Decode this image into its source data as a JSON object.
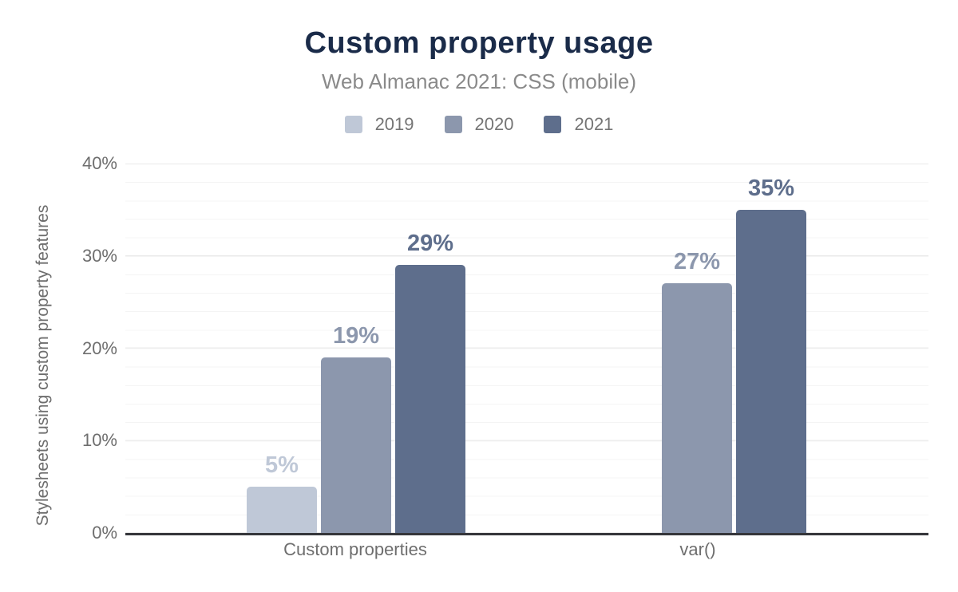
{
  "chart_data": {
    "type": "bar",
    "title": "Custom property usage",
    "subtitle": "Web Almanac 2021: CSS (mobile)",
    "ylabel": "Stylesheets using custom property features",
    "xlabel": "",
    "categories": [
      "Custom properties",
      "var()"
    ],
    "series": [
      {
        "name": "2019",
        "color": "#bfc8d7",
        "values": [
          5,
          null
        ]
      },
      {
        "name": "2020",
        "color": "#8c97ad",
        "values": [
          19,
          27
        ]
      },
      {
        "name": "2021",
        "color": "#5e6e8c",
        "values": [
          29,
          35
        ]
      }
    ],
    "value_suffix": "%",
    "ylim": [
      0,
      40
    ],
    "yticks": [
      "0%",
      "10%",
      "20%",
      "30%",
      "40%"
    ],
    "grid": {
      "major_step_pct": 10,
      "minor_step_pct": 2,
      "minor_on": true
    },
    "legend_position": "top-center"
  },
  "palette": {
    "title_color": "#1a2b49",
    "subtitle_color": "#8a8a8a",
    "axis_text_color": "#6e6e6e",
    "legend_text_color": "#757575",
    "axis_line_color": "#35363a",
    "major_grid_color": "#e9e9e9",
    "minor_grid_color": "#f4f4f4",
    "background": "#ffffff"
  }
}
